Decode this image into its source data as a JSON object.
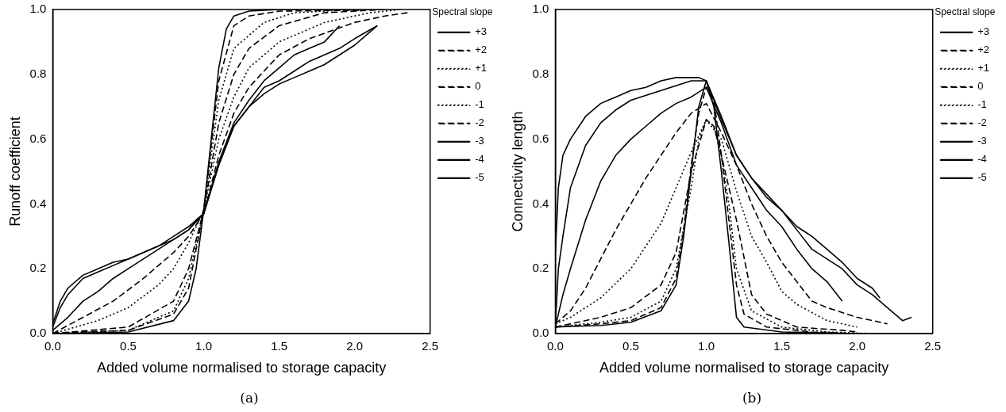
{
  "chart_data": [
    {
      "type": "line",
      "title": "(a)",
      "xlabel": "Added volume normalised to storage capacity",
      "ylabel": "Runoff coefficient",
      "legend_title": "Spectral slope",
      "legend": "right",
      "grid": false,
      "xlim": [
        0,
        2.5
      ],
      "ylim": [
        0,
        1
      ],
      "xticks": [
        {
          "value": 0,
          "label": "0.0"
        },
        {
          "value": 0.5,
          "label": "0.5"
        },
        {
          "value": 1,
          "label": "1.0"
        },
        {
          "value": 1.5,
          "label": "1.5"
        },
        {
          "value": 2,
          "label": "2.0"
        },
        {
          "value": 2.5,
          "label": "2.5"
        }
      ],
      "yticks": [
        {
          "value": 0,
          "label": "0.0"
        },
        {
          "value": 0.2,
          "label": "0.2"
        },
        {
          "value": 0.4,
          "label": "0.4"
        },
        {
          "value": 0.6,
          "label": "0.6"
        },
        {
          "value": 0.8,
          "label": "0.8"
        },
        {
          "value": 1,
          "label": "1.0"
        }
      ],
      "series": [
        {
          "name": "+3",
          "color": "#000000",
          "line_style": "solid",
          "x": [
            0,
            0.5,
            0.8,
            0.9,
            0.95,
            1.0,
            1.05,
            1.1,
            1.15,
            1.2,
            1.3,
            1.5,
            2.0,
            2.2
          ],
          "values": [
            0,
            0.005,
            0.04,
            0.1,
            0.2,
            0.38,
            0.6,
            0.82,
            0.94,
            0.98,
            0.995,
            1,
            1,
            1
          ]
        },
        {
          "name": "+2",
          "color": "#000000",
          "line_style": "dashed",
          "x": [
            0,
            0.5,
            0.8,
            0.9,
            1.0,
            1.1,
            1.2,
            1.3,
            1.5,
            2.05
          ],
          "values": [
            0.002,
            0.01,
            0.06,
            0.14,
            0.38,
            0.78,
            0.95,
            0.98,
            0.995,
            0.998
          ]
        },
        {
          "name": "+1",
          "color": "#000000",
          "line_style": "dotted",
          "x": [
            0,
            0.5,
            0.8,
            0.9,
            1.0,
            1.1,
            1.2,
            1.4,
            1.6,
            2.0
          ],
          "values": [
            0,
            0.01,
            0.07,
            0.17,
            0.38,
            0.72,
            0.88,
            0.96,
            0.99,
            1
          ]
        },
        {
          "name": "0",
          "color": "#000000",
          "line_style": "dashed",
          "x": [
            0,
            0.5,
            0.8,
            0.9,
            1.0,
            1.1,
            1.2,
            1.3,
            1.5,
            1.8,
            2.2
          ],
          "values": [
            0,
            0.02,
            0.1,
            0.2,
            0.38,
            0.65,
            0.8,
            0.88,
            0.95,
            0.99,
            1
          ]
        },
        {
          "name": "-1",
          "color": "#000000",
          "line_style": "dotted",
          "x": [
            0,
            0.3,
            0.5,
            0.7,
            0.8,
            0.9,
            1.0,
            1.1,
            1.2,
            1.3,
            1.5,
            1.8,
            2.1,
            2.3
          ],
          "values": [
            0,
            0.04,
            0.08,
            0.15,
            0.2,
            0.28,
            0.38,
            0.6,
            0.73,
            0.82,
            0.9,
            0.96,
            0.99,
            1
          ]
        },
        {
          "name": "-2",
          "color": "#000000",
          "line_style": "dashed",
          "x": [
            0,
            0.2,
            0.4,
            0.6,
            0.8,
            0.9,
            1.0,
            1.1,
            1.2,
            1.3,
            1.5,
            1.7,
            2.0,
            2.2,
            2.35
          ],
          "values": [
            0,
            0.05,
            0.1,
            0.17,
            0.25,
            0.3,
            0.37,
            0.55,
            0.68,
            0.76,
            0.86,
            0.91,
            0.96,
            0.98,
            0.99
          ]
        },
        {
          "name": "-3",
          "color": "#000000",
          "line_style": "solid",
          "x": [
            0,
            0.1,
            0.2,
            0.3,
            0.4,
            0.5,
            0.7,
            0.9,
            1.0,
            1.1,
            1.2,
            1.3,
            1.4,
            1.5,
            1.6,
            1.7,
            1.8,
            1.9
          ],
          "values": [
            0.01,
            0.05,
            0.1,
            0.13,
            0.17,
            0.2,
            0.26,
            0.32,
            0.37,
            0.53,
            0.65,
            0.72,
            0.78,
            0.82,
            0.86,
            0.88,
            0.9,
            0.95
          ]
        },
        {
          "name": "-4",
          "color": "#000000",
          "line_style": "solid",
          "x": [
            0,
            0.05,
            0.1,
            0.2,
            0.3,
            0.4,
            0.5,
            0.7,
            0.8,
            0.9,
            1.0,
            1.1,
            1.2,
            1.3,
            1.4,
            1.5,
            1.6,
            1.7,
            1.8,
            1.9,
            2.0,
            2.15
          ],
          "values": [
            0.02,
            0.08,
            0.12,
            0.17,
            0.19,
            0.21,
            0.23,
            0.27,
            0.3,
            0.33,
            0.37,
            0.52,
            0.64,
            0.7,
            0.76,
            0.78,
            0.81,
            0.84,
            0.86,
            0.88,
            0.91,
            0.95
          ]
        },
        {
          "name": "-5",
          "color": "#000000",
          "line_style": "solid",
          "x": [
            0,
            0.05,
            0.1,
            0.2,
            0.3,
            0.4,
            0.5,
            0.6,
            0.7,
            0.8,
            0.9,
            0.95,
            1.0,
            1.1,
            1.2,
            1.3,
            1.4,
            1.5,
            1.6,
            1.7,
            1.8,
            1.9,
            2.0,
            2.1,
            2.15
          ],
          "values": [
            0.03,
            0.1,
            0.14,
            0.18,
            0.2,
            0.22,
            0.23,
            0.25,
            0.27,
            0.29,
            0.32,
            0.35,
            0.37,
            0.52,
            0.64,
            0.7,
            0.74,
            0.77,
            0.79,
            0.81,
            0.83,
            0.86,
            0.89,
            0.93,
            0.95
          ]
        }
      ]
    },
    {
      "type": "line",
      "title": "(b)",
      "xlabel": "Added volume normalised to storage capacity",
      "ylabel": "Connectivity length",
      "legend_title": "Spectral slope",
      "legend": "right",
      "grid": false,
      "xlim": [
        0,
        2.5
      ],
      "ylim": [
        0,
        1
      ],
      "xticks": [
        {
          "value": 0,
          "label": "0.0"
        },
        {
          "value": 0.5,
          "label": "0.5"
        },
        {
          "value": 1,
          "label": "1.0"
        },
        {
          "value": 1.5,
          "label": "1.5"
        },
        {
          "value": 2,
          "label": "2.0"
        },
        {
          "value": 2.5,
          "label": "2.5"
        }
      ],
      "yticks": [
        {
          "value": 0,
          "label": "0.0"
        },
        {
          "value": 0.2,
          "label": "0.2"
        },
        {
          "value": 0.4,
          "label": "0.4"
        },
        {
          "value": 0.6,
          "label": "0.6"
        },
        {
          "value": 0.8,
          "label": "0.8"
        },
        {
          "value": 1,
          "label": "1.0"
        }
      ],
      "series": [
        {
          "name": "+3",
          "color": "#000000",
          "line_style": "solid",
          "x": [
            0,
            0.3,
            0.5,
            0.7,
            0.8,
            0.85,
            0.9,
            0.95,
            1.0,
            1.05,
            1.1,
            1.15,
            1.2,
            1.25,
            1.5,
            2.0
          ],
          "values": [
            0.02,
            0.025,
            0.035,
            0.07,
            0.15,
            0.3,
            0.5,
            0.7,
            0.78,
            0.7,
            0.5,
            0.28,
            0.05,
            0.02,
            0.005,
            0
          ]
        },
        {
          "name": "+2",
          "color": "#000000",
          "line_style": "dashed",
          "x": [
            0,
            0.3,
            0.5,
            0.7,
            0.8,
            0.85,
            0.9,
            0.95,
            1.0,
            1.05,
            1.1,
            1.15,
            1.2,
            1.25,
            1.4,
            1.7,
            2.0
          ],
          "values": [
            0.02,
            0.03,
            0.04,
            0.08,
            0.17,
            0.32,
            0.52,
            0.68,
            0.76,
            0.72,
            0.55,
            0.35,
            0.15,
            0.06,
            0.02,
            0.005,
            0
          ]
        },
        {
          "name": "+1",
          "color": "#000000",
          "line_style": "dotted",
          "x": [
            0,
            0.3,
            0.5,
            0.7,
            0.8,
            0.9,
            0.95,
            1.0,
            1.05,
            1.1,
            1.15,
            1.2,
            1.3,
            1.5,
            1.8,
            2.1
          ],
          "values": [
            0.02,
            0.035,
            0.05,
            0.1,
            0.2,
            0.45,
            0.6,
            0.66,
            0.64,
            0.55,
            0.4,
            0.2,
            0.07,
            0.02,
            0.005,
            0
          ]
        },
        {
          "name": "0",
          "color": "#000000",
          "line_style": "dashed",
          "x": [
            0,
            0.3,
            0.5,
            0.7,
            0.8,
            0.9,
            1.0,
            1.05,
            1.1,
            1.2,
            1.3,
            1.4,
            1.6,
            1.9,
            2.0
          ],
          "values": [
            0.02,
            0.05,
            0.08,
            0.15,
            0.25,
            0.5,
            0.66,
            0.64,
            0.55,
            0.35,
            0.12,
            0.06,
            0.02,
            0.01,
            0.005
          ]
        },
        {
          "name": "-1",
          "color": "#000000",
          "line_style": "dotted",
          "x": [
            0,
            0.1,
            0.3,
            0.5,
            0.7,
            0.8,
            0.9,
            1.0,
            1.1,
            1.2,
            1.3,
            1.4,
            1.5,
            1.6,
            1.8,
            1.9,
            2.0
          ],
          "values": [
            0.03,
            0.05,
            0.11,
            0.2,
            0.34,
            0.45,
            0.56,
            0.66,
            0.6,
            0.44,
            0.3,
            0.22,
            0.13,
            0.09,
            0.04,
            0.03,
            0.02
          ]
        },
        {
          "name": "-2",
          "color": "#000000",
          "line_style": "dashed",
          "x": [
            0,
            0.1,
            0.2,
            0.3,
            0.4,
            0.5,
            0.6,
            0.7,
            0.8,
            0.9,
            1.0,
            1.1,
            1.2,
            1.3,
            1.4,
            1.5,
            1.6,
            1.7,
            1.8,
            2.0,
            2.2
          ],
          "values": [
            0.03,
            0.07,
            0.14,
            0.23,
            0.32,
            0.4,
            0.48,
            0.55,
            0.62,
            0.68,
            0.71,
            0.62,
            0.52,
            0.4,
            0.3,
            0.22,
            0.16,
            0.1,
            0.08,
            0.05,
            0.03
          ]
        },
        {
          "name": "-3",
          "color": "#000000",
          "line_style": "solid",
          "x": [
            0,
            0.05,
            0.1,
            0.2,
            0.3,
            0.4,
            0.5,
            0.6,
            0.7,
            0.8,
            0.9,
            1.0,
            1.1,
            1.2,
            1.3,
            1.4,
            1.5,
            1.6,
            1.7,
            1.8,
            1.9
          ],
          "values": [
            0.02,
            0.12,
            0.2,
            0.35,
            0.47,
            0.55,
            0.6,
            0.64,
            0.68,
            0.71,
            0.73,
            0.76,
            0.65,
            0.52,
            0.45,
            0.38,
            0.33,
            0.26,
            0.2,
            0.16,
            0.1
          ]
        },
        {
          "name": "-4",
          "color": "#000000",
          "line_style": "solid",
          "x": [
            0,
            0.02,
            0.05,
            0.1,
            0.2,
            0.3,
            0.4,
            0.5,
            0.7,
            0.9,
            1.0,
            1.1,
            1.2,
            1.3,
            1.4,
            1.5,
            1.6,
            1.7,
            1.8,
            1.9,
            2.0,
            2.1,
            2.2,
            2.3,
            2.36
          ],
          "values": [
            0.03,
            0.2,
            0.3,
            0.45,
            0.58,
            0.65,
            0.69,
            0.72,
            0.75,
            0.78,
            0.78,
            0.67,
            0.55,
            0.48,
            0.42,
            0.38,
            0.32,
            0.26,
            0.23,
            0.2,
            0.15,
            0.12,
            0.08,
            0.04,
            0.05
          ]
        },
        {
          "name": "-5",
          "color": "#000000",
          "line_style": "solid",
          "x": [
            0,
            0.02,
            0.05,
            0.1,
            0.2,
            0.3,
            0.4,
            0.5,
            0.6,
            0.7,
            0.8,
            0.95,
            1.0,
            1.1,
            1.2,
            1.3,
            1.4,
            1.5,
            1.6,
            1.7,
            1.8,
            1.9,
            2.0,
            2.1,
            2.15
          ],
          "values": [
            0.25,
            0.45,
            0.55,
            0.6,
            0.67,
            0.71,
            0.73,
            0.75,
            0.76,
            0.78,
            0.79,
            0.79,
            0.78,
            0.66,
            0.55,
            0.48,
            0.43,
            0.38,
            0.33,
            0.3,
            0.26,
            0.22,
            0.17,
            0.14,
            0.11
          ]
        }
      ]
    }
  ]
}
